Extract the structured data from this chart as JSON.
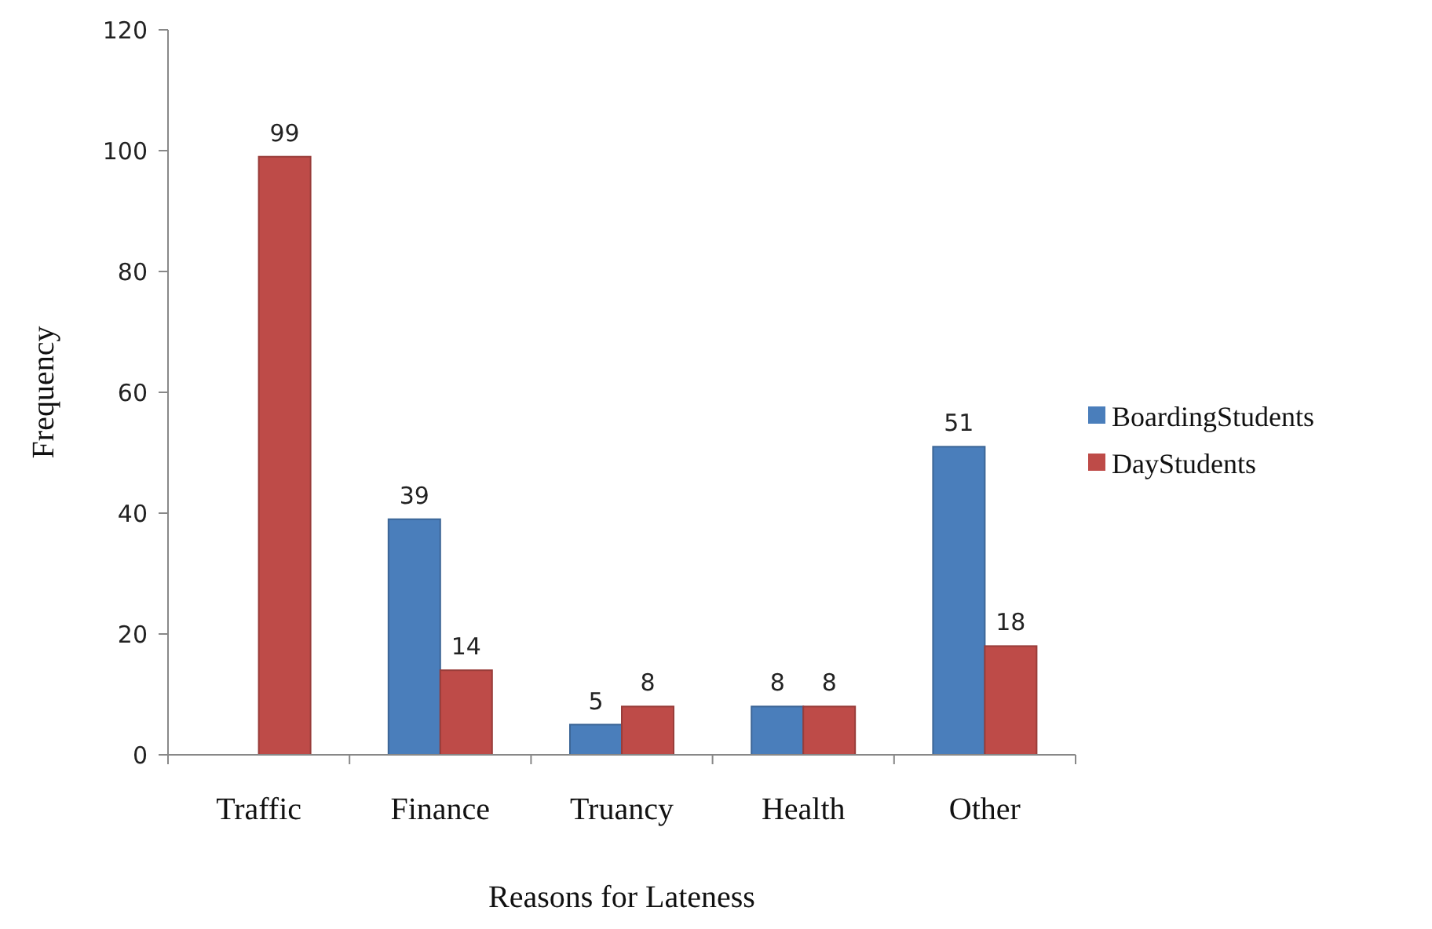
{
  "chart_data": {
    "type": "bar",
    "xlabel": "Reasons for Lateness",
    "ylabel": "Frequency",
    "categories": [
      "Traffic",
      "Finance",
      "Truancy",
      "Health",
      "Other"
    ],
    "series": [
      {
        "name": "BoardingStudents",
        "color": "#4a7ebb",
        "values": [
          null,
          39,
          5,
          8,
          51
        ]
      },
      {
        "name": "DayStudents",
        "color": "#be4b48",
        "values": [
          99,
          14,
          8,
          8,
          18
        ]
      }
    ],
    "ylim": [
      0,
      120
    ],
    "yticks": [
      0,
      20,
      40,
      60,
      80,
      100,
      120
    ],
    "grid": false,
    "legend": "right",
    "data_labels": true
  }
}
